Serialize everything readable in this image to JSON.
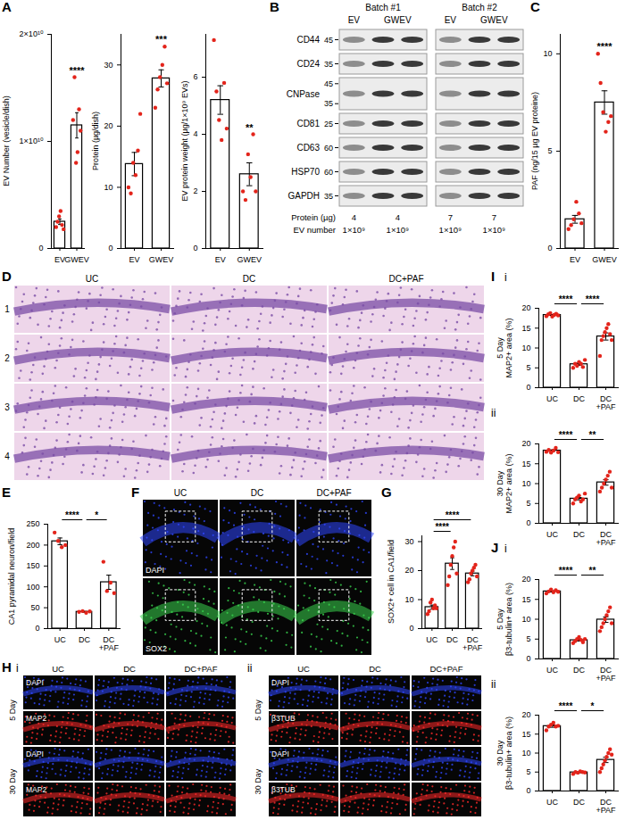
{
  "chart_data": [
    {
      "panel": "A",
      "type": "bar",
      "ylabel": "EV Number (vesicle/dish)",
      "categories": [
        "EV",
        "GWEV"
      ],
      "values": [
        2500000000,
        11500000000
      ],
      "errors": [
        260000000,
        1180000000
      ],
      "points": [
        [
          2000000000,
          2500000000,
          3000000000,
          3500000000,
          2200000000,
          1800000000
        ],
        [
          12000000000,
          16000000000,
          8000000000,
          9000000000,
          13000000000,
          11000000000
        ]
      ],
      "ylim": [
        0,
        20000000000
      ],
      "yticks": [
        0,
        {
          "value": 10000000000,
          "label": "1×10¹⁰"
        },
        {
          "value": 20000000000,
          "label": "2×10¹⁰"
        }
      ],
      "significance": [
        {
          "category": "GWEV",
          "label": "****"
        }
      ],
      "color": "#e3241b"
    },
    {
      "type": "bar",
      "ylabel": "Protein (µg/dish)",
      "categories": [
        "EV",
        "GWEV"
      ],
      "values": [
        13.8,
        27.8
      ],
      "errors": [
        1.9,
        1.4
      ],
      "points": [
        [
          10,
          9,
          14,
          12,
          16,
          22
        ],
        [
          23,
          26,
          28,
          30,
          33,
          27
        ]
      ],
      "ylim": [
        0,
        35
      ],
      "yticks": [
        0,
        10,
        20,
        30
      ],
      "significance": [
        {
          "category": "GWEV",
          "label": "***"
        }
      ],
      "color": "#e3241b"
    },
    {
      "type": "bar",
      "ylabel": "EV protein weight (µg/1×10⁹ EVs)",
      "categories": [
        "EV",
        "GWEV"
      ],
      "values": [
        5.2,
        2.6
      ],
      "errors": [
        0.5,
        0.4
      ],
      "points": [
        [
          7.3,
          5.5,
          4.5,
          3.8,
          5.8,
          4.2
        ],
        [
          2.0,
          1.7,
          3.3,
          2.5,
          4.0,
          2.0
        ]
      ],
      "ylim": [
        0,
        7.5
      ],
      "yticks": [
        0,
        2,
        4,
        6
      ],
      "significance": [
        {
          "category": "GWEV",
          "label": "**"
        }
      ],
      "color": "#e3241b"
    },
    {
      "panel": "C",
      "type": "bar",
      "ylabel": "PAF (ng/15 µg EV proteine)",
      "categories": [
        "EV",
        "GWEV"
      ],
      "values": [
        1.5,
        7.5
      ],
      "errors": [
        0.2,
        0.6
      ],
      "points": [
        [
          1.0,
          1.2,
          1.5,
          2.4,
          1.8,
          1.3
        ],
        [
          10.0,
          8.5,
          7.0,
          6.0,
          6.5,
          6.8
        ]
      ],
      "ylim": [
        0,
        11
      ],
      "yticks": [
        0,
        5,
        10
      ],
      "significance": [
        {
          "category": "GWEV",
          "label": "****"
        }
      ],
      "color": "#e3241b"
    },
    {
      "panel": "E",
      "type": "bar",
      "ylabel": "CA1 pyramidal neuron/field",
      "categories": [
        "UC",
        "DC",
        "DC+PAF"
      ],
      "values": [
        209,
        40,
        111
      ],
      "errors": [
        8,
        1,
        17
      ],
      "points": [
        [
          230,
          210,
          195,
          200
        ],
        [
          40,
          42,
          38,
          41
        ],
        [
          160,
          90,
          110,
          85
        ]
      ],
      "ylim": [
        0,
        250
      ],
      "yticks": [
        0,
        50,
        100,
        150,
        200,
        250
      ],
      "significance": [
        {
          "from": "UC",
          "to": "DC",
          "label": "****"
        },
        {
          "from": "DC",
          "to": "DC+PAF",
          "label": "*"
        }
      ],
      "color": "#e3241b"
    },
    {
      "panel": "G",
      "type": "bar",
      "ylabel": "SOX2+ cell in CA1/field",
      "categories": [
        "UC",
        "DC",
        "DC+PAF"
      ],
      "values": [
        7.4,
        22.4,
        19.0
      ],
      "errors": [
        0.7,
        2.0,
        0.8
      ],
      "points": [
        [
          5,
          6,
          9,
          10,
          7,
          8,
          7
        ],
        [
          15,
          18,
          22,
          25,
          28,
          30,
          19
        ],
        [
          16,
          17,
          19,
          20,
          21,
          22,
          18
        ]
      ],
      "ylim": [
        0,
        32
      ],
      "yticks": [
        0,
        10,
        20,
        30
      ],
      "significance": [
        {
          "from": "UC",
          "to": "DC",
          "label": "****"
        },
        {
          "from": "UC",
          "to": "DC+PAF",
          "label": "****"
        }
      ],
      "color": "#e3241b"
    },
    {
      "panel": "I",
      "subpanel": "i",
      "subtitle": "5 Day",
      "type": "bar",
      "ylabel": "MAP2+ area (%)",
      "categories": [
        "UC",
        "DC",
        "DC+PAF"
      ],
      "values": [
        18.3,
        5.9,
        12.9
      ],
      "errors": [
        0.1,
        0.3,
        0.9
      ],
      "points": [
        [
          18.0,
          18.5,
          18.8,
          17.9,
          18.3,
          18.6,
          18.2
        ],
        [
          5,
          6,
          5.5,
          6.5,
          6,
          5.2,
          7
        ],
        [
          8,
          12,
          13,
          14,
          15,
          16,
          13.5,
          12
        ]
      ],
      "ylim": [
        0,
        20
      ],
      "yticks": [
        0,
        5,
        10,
        15,
        20
      ],
      "significance": [
        {
          "from": "UC",
          "to": "DC",
          "label": "****"
        },
        {
          "from": "DC",
          "to": "DC+PAF",
          "label": "****"
        }
      ],
      "color": "#e3241b"
    },
    {
      "subpanel": "ii",
      "subtitle": "30 Day",
      "type": "bar",
      "ylabel": "MAP2+ area (%)",
      "categories": [
        "UC",
        "DC",
        "DC+PAF"
      ],
      "values": [
        18.3,
        6.2,
        10.3
      ],
      "errors": [
        0.2,
        0.3,
        0.7
      ],
      "points": [
        [
          18,
          18.5,
          17.8,
          18.3,
          19,
          17.9
        ],
        [
          5,
          6,
          6.5,
          7,
          5.5,
          6,
          7.5
        ],
        [
          8,
          9,
          10,
          11,
          12,
          13,
          9
        ]
      ],
      "ylim": [
        0,
        20
      ],
      "yticks": [
        0,
        5,
        10,
        15,
        20
      ],
      "significance": [
        {
          "from": "UC",
          "to": "DC",
          "label": "****"
        },
        {
          "from": "DC",
          "to": "DC+PAF",
          "label": "**"
        }
      ],
      "color": "#e3241b"
    },
    {
      "panel": "J",
      "subpanel": "i",
      "subtitle": "5 Day",
      "type": "bar",
      "ylabel": "β3-tubulin+ area (%)",
      "categories": [
        "UC",
        "DC",
        "DC+PAF"
      ],
      "values": [
        17.0,
        4.7,
        9.9
      ],
      "errors": [
        0.15,
        0.2,
        0.7
      ],
      "points": [
        [
          16.5,
          17,
          17.5,
          16.8,
          17.3,
          16.9
        ],
        [
          4,
          4.5,
          5,
          5.5,
          4.8,
          4.2,
          5
        ],
        [
          7,
          8,
          9,
          10,
          11,
          12,
          13,
          9
        ]
      ],
      "ylim": [
        0,
        20
      ],
      "yticks": [
        0,
        5,
        10,
        15,
        20
      ],
      "significance": [
        {
          "from": "UC",
          "to": "DC",
          "label": "****"
        },
        {
          "from": "DC",
          "to": "DC+PAF",
          "label": "**"
        }
      ],
      "color": "#e3241b"
    },
    {
      "subpanel": "ii",
      "subtitle": "30 Day",
      "type": "bar",
      "ylabel": "β3-tubulin+ area (%)",
      "categories": [
        "UC",
        "DC",
        "DC+PAF"
      ],
      "values": [
        17.1,
        4.9,
        8.2
      ],
      "errors": [
        0.3,
        0.1,
        0.7
      ],
      "points": [
        [
          16,
          17,
          17.5,
          18,
          17,
          17.2
        ],
        [
          4.5,
          5,
          4.8,
          5.2,
          5,
          4.9
        ],
        [
          5,
          6,
          7,
          8,
          9,
          10,
          11,
          9.6
        ]
      ],
      "ylim": [
        0,
        20
      ],
      "yticks": [
        0,
        5,
        10,
        15,
        20
      ],
      "significance": [
        {
          "from": "UC",
          "to": "DC",
          "label": "****"
        },
        {
          "from": "DC",
          "to": "DC+PAF",
          "label": "*"
        }
      ],
      "color": "#e3241b"
    }
  ],
  "blot": {
    "panel": "B",
    "batches": [
      "Batch #1",
      "Batch #2"
    ],
    "groups": [
      {
        "label": "EV",
        "lanes": 1
      },
      {
        "label": "GWEV",
        "lanes": 2
      }
    ],
    "rows": [
      {
        "label": "CD44",
        "markers": [
          45
        ]
      },
      {
        "label": "CD24",
        "markers": [
          35
        ]
      },
      {
        "label": "CNPase",
        "markers": [
          45,
          35
        ]
      },
      {
        "label": "CD81",
        "markers": [
          25
        ]
      },
      {
        "label": "CD63",
        "markers": [
          60
        ]
      },
      {
        "label": "HSP70",
        "markers": [
          60
        ]
      },
      {
        "label": "GAPDH",
        "markers": [
          35
        ]
      }
    ],
    "footer": [
      {
        "label": "Protein (µg)",
        "values": [
          [
            4,
            4
          ],
          [
            7,
            7
          ]
        ]
      },
      {
        "label": "EV number",
        "values": [
          [
            "1×10⁹",
            "1×10⁹"
          ],
          [
            "1×10⁹",
            "1×10⁹"
          ]
        ]
      }
    ]
  },
  "images": [
    {
      "panel": "D",
      "columns": [
        "UC",
        "DC",
        "DC+PAF"
      ],
      "rows": [
        "1",
        "2",
        "3",
        "4"
      ],
      "colors": [
        "#eed6ea",
        "#7b4ea6"
      ]
    },
    {
      "panel": "F",
      "columns": [
        "UC",
        "DC",
        "DC+PAF"
      ],
      "channels": [
        "DAPI",
        "SOX2"
      ],
      "colors": [
        "#2f47ff",
        "#3ad64f"
      ]
    },
    {
      "panel": "H",
      "subpanels": [
        {
          "label": "i",
          "columns": [
            "UC",
            "DC",
            "DC+PAF"
          ],
          "groups": [
            "5 Day",
            "30 Day"
          ],
          "channels": [
            "DAPI",
            "MAP2"
          ],
          "colors": [
            "#2f47ff",
            "#ff2a2a"
          ]
        },
        {
          "label": "ii",
          "columns": [
            "UC",
            "DC",
            "DC+PAF"
          ],
          "groups": [
            "5 Day",
            "30 Day"
          ],
          "channels": [
            "DAPI",
            "β3TUB"
          ],
          "colors": [
            "#2f47ff",
            "#ff2a2a"
          ]
        }
      ]
    }
  ]
}
